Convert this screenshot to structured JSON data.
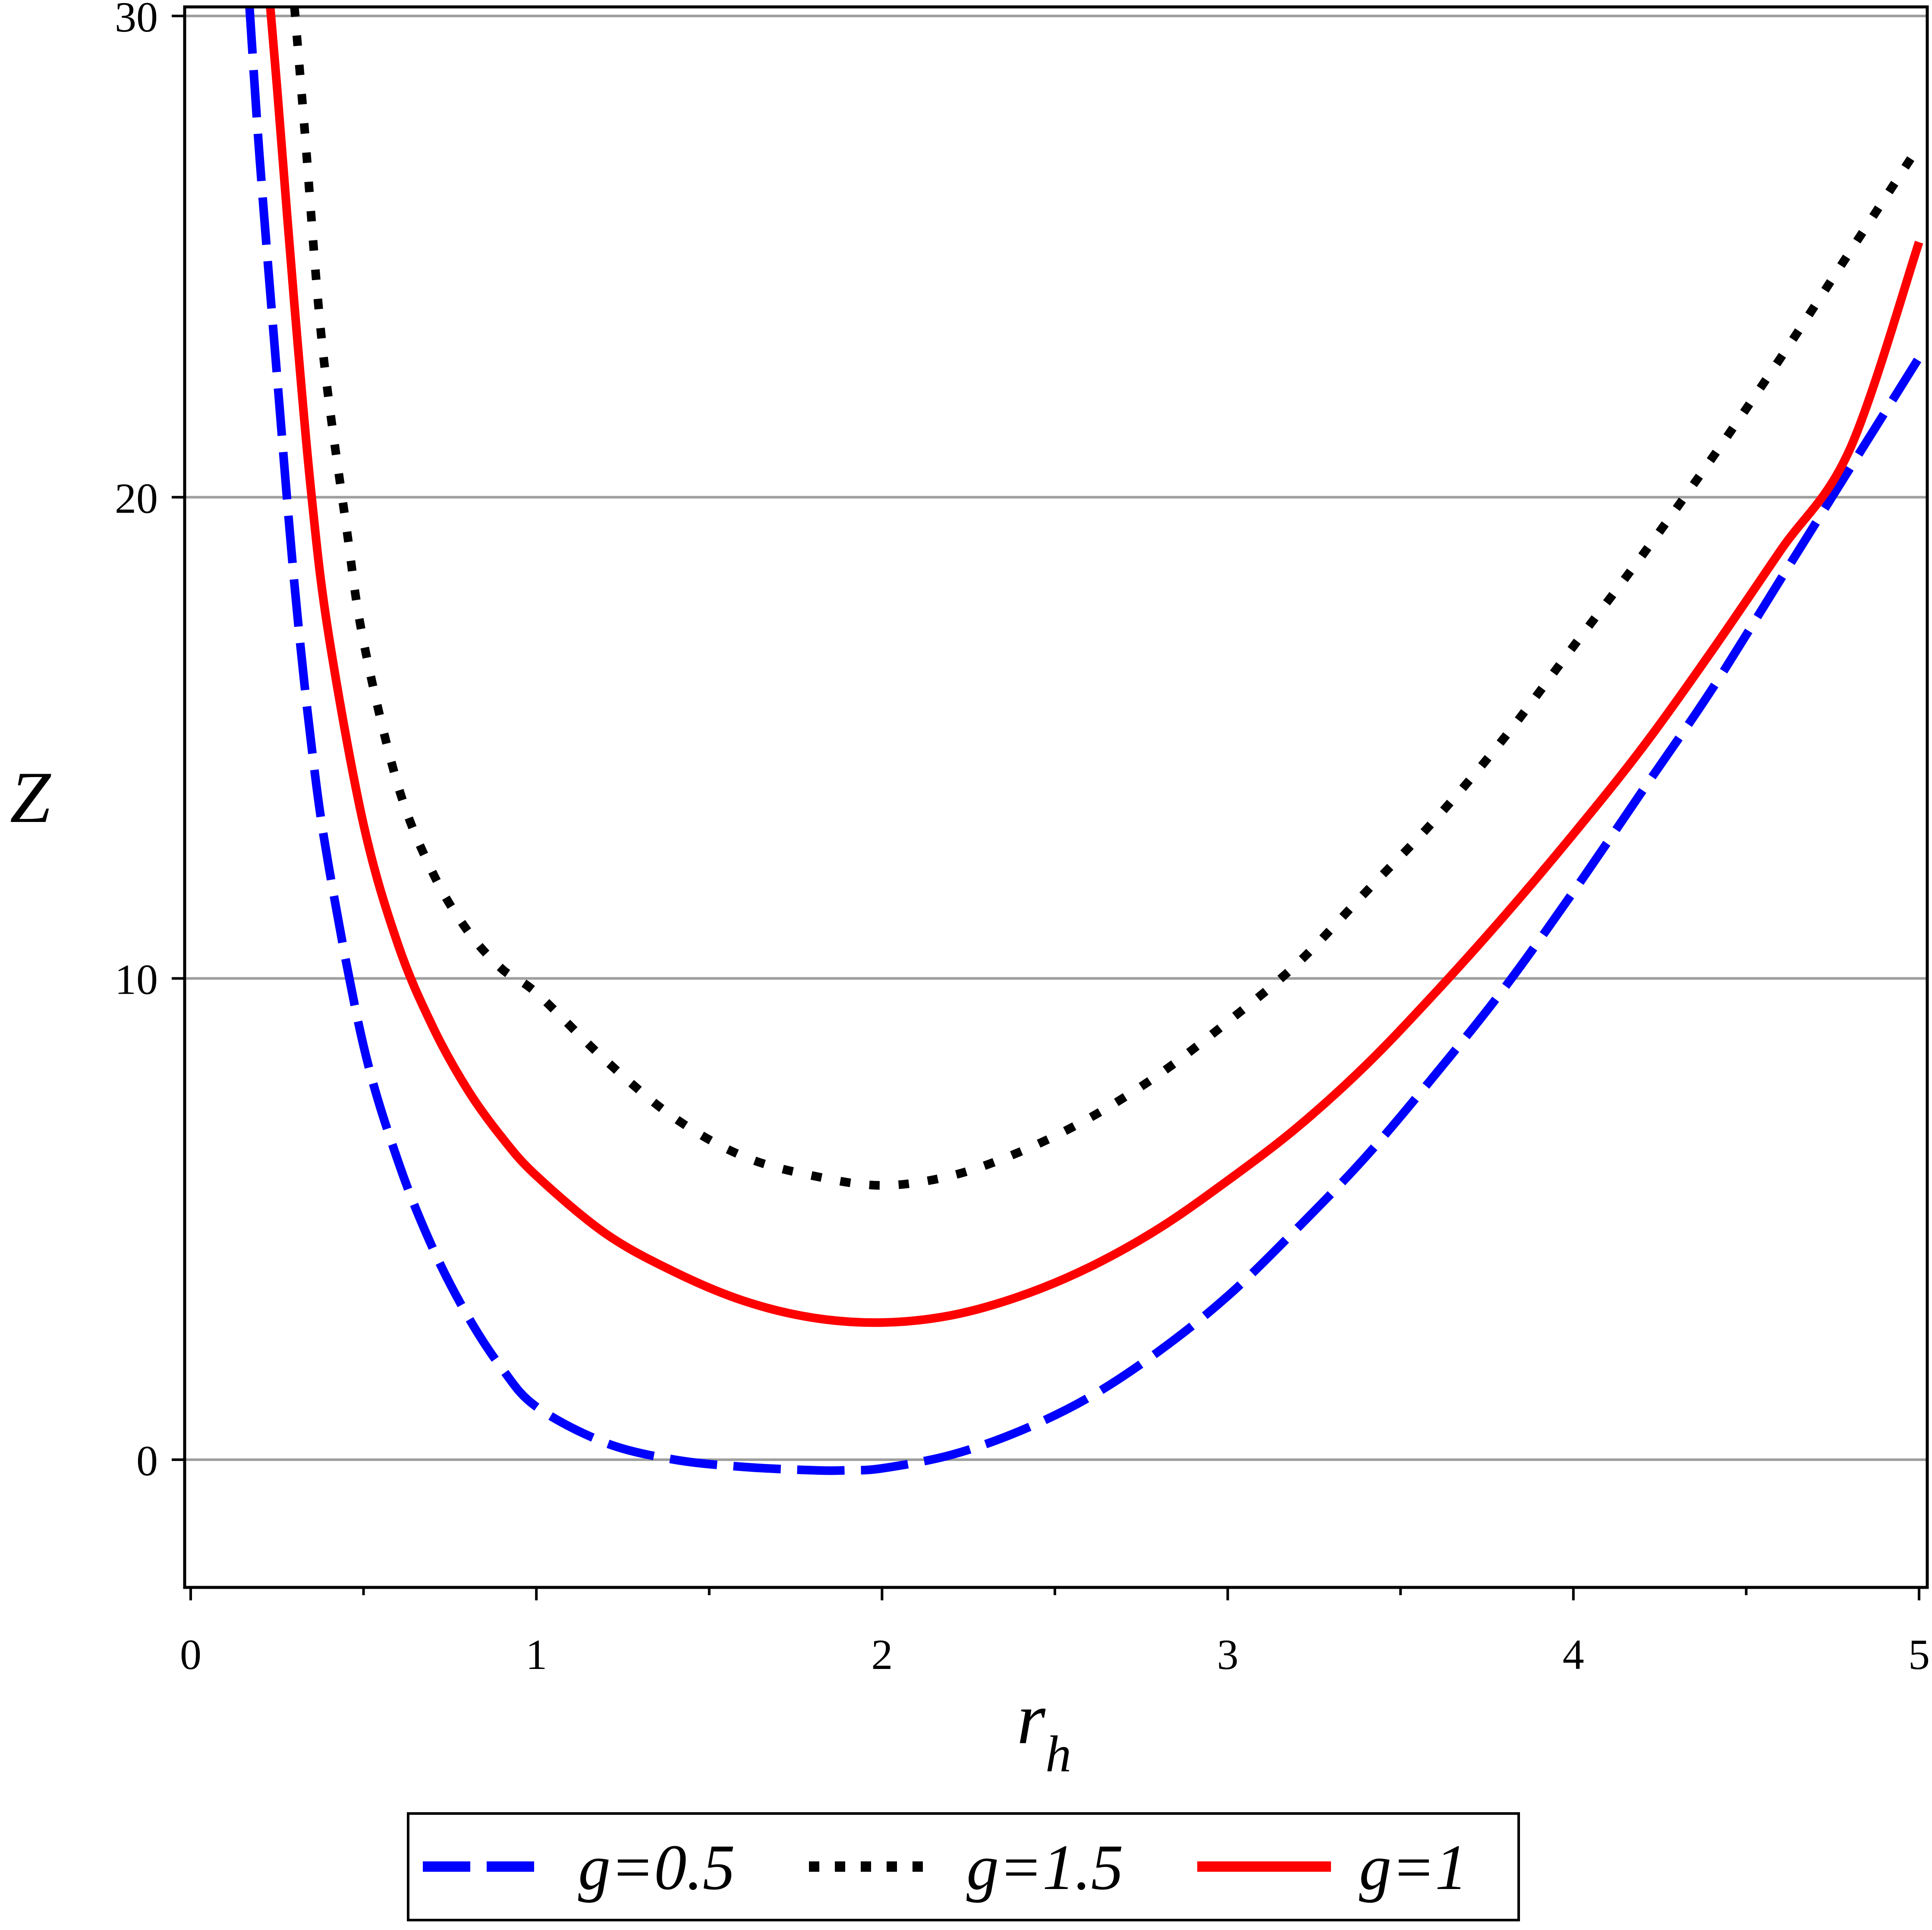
{
  "chart_data": {
    "type": "line",
    "xlabel": "r",
    "xlabel_sub": "h",
    "ylabel": "Z",
    "xlim": [
      0,
      5
    ],
    "ylim": [
      -2.6,
      30.2
    ],
    "x_ticks": [
      0,
      1,
      2,
      3,
      4,
      5
    ],
    "x_tick_labels": [
      "0",
      "1",
      "2",
      "3",
      "4",
      "5"
    ],
    "y_ticks": [
      0,
      10,
      20,
      30
    ],
    "y_tick_labels": [
      "0",
      "10",
      "20",
      "30"
    ],
    "grid": "horizontal",
    "legend_position": "bottom",
    "series": [
      {
        "name": "g=0.5",
        "color": "#0000ff",
        "style": "dash",
        "x": [
          0.17,
          0.2,
          0.25,
          0.3,
          0.35,
          0.4,
          0.5,
          0.6,
          0.7,
          0.8,
          0.9,
          1.0,
          1.2,
          1.4,
          1.6,
          1.8,
          1.9,
          2.0,
          2.2,
          2.4,
          2.6,
          2.8,
          3.0,
          3.2,
          3.4,
          3.6,
          3.8,
          4.0,
          4.2,
          4.4,
          4.6,
          4.8,
          5.0
        ],
        "y": [
          30.2,
          27.0,
          22.5,
          18.2,
          14.8,
          12.3,
          8.6,
          6.2,
          4.4,
          3.0,
          1.9,
          1.1,
          0.35,
          0.0,
          -0.15,
          -0.22,
          -0.22,
          -0.18,
          0.1,
          0.6,
          1.3,
          2.25,
          3.4,
          4.8,
          6.3,
          8.0,
          9.8,
          11.8,
          13.9,
          16.0,
          18.3,
          20.6,
          22.9
        ]
      },
      {
        "name": "g=1.5",
        "color": "#000000",
        "style": "dot",
        "x": [
          0.3,
          0.33,
          0.38,
          0.45,
          0.5,
          0.6,
          0.7,
          0.8,
          0.9,
          1.0,
          1.2,
          1.4,
          1.6,
          1.8,
          2.0,
          2.2,
          2.4,
          2.6,
          2.8,
          3.0,
          3.2,
          3.4,
          3.6,
          3.8,
          4.0,
          4.2,
          4.4,
          4.6,
          4.8,
          5.0
        ],
        "y": [
          30.2,
          27.6,
          23.2,
          19.4,
          17.0,
          14.0,
          12.2,
          11.0,
          10.2,
          9.7,
          8.3,
          7.1,
          6.3,
          5.9,
          5.7,
          5.9,
          6.4,
          7.1,
          8.0,
          9.1,
          10.3,
          11.8,
          13.3,
          15.0,
          16.9,
          18.8,
          20.8,
          22.9,
          25.1,
          27.3
        ]
      },
      {
        "name": "g=1",
        "color": "#ff0000",
        "style": "solid",
        "x": [
          0.23,
          0.25,
          0.3,
          0.35,
          0.4,
          0.5,
          0.6,
          0.7,
          0.8,
          0.9,
          1.0,
          1.2,
          1.4,
          1.6,
          1.8,
          2.0,
          2.2,
          2.4,
          2.6,
          2.8,
          3.0,
          3.2,
          3.4,
          3.6,
          3.8,
          4.0,
          4.2,
          4.4,
          4.6,
          4.8,
          5.0
        ],
        "y": [
          30.2,
          28.5,
          24.0,
          20.0,
          17.1,
          13.2,
          10.7,
          9.0,
          7.7,
          6.7,
          5.9,
          4.7,
          3.9,
          3.3,
          2.95,
          2.85,
          3.0,
          3.4,
          4.0,
          4.8,
          5.8,
          6.9,
          8.2,
          9.7,
          11.3,
          13.0,
          14.8,
          16.8,
          18.9,
          21.0,
          25.3
        ]
      }
    ]
  }
}
